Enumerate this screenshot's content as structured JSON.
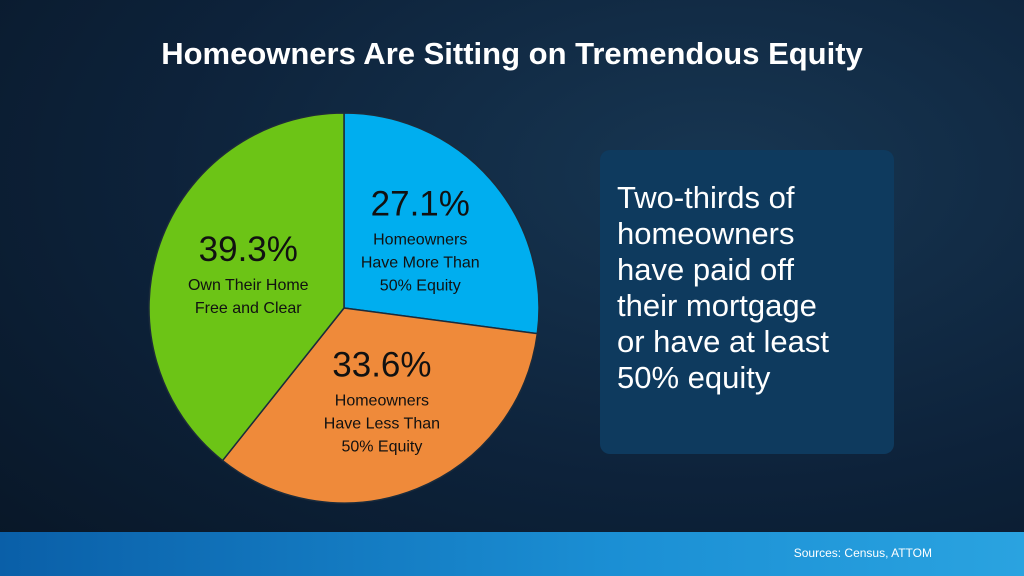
{
  "chart_data": {
    "type": "pie",
    "title": "Homeowners Are Sitting on Tremendous Equity",
    "categories": [
      "Homeowners Have More Than 50% Equity",
      "Homeowners Have Less Than 50% Equity",
      "Own Their Home Free and Clear"
    ],
    "values": [
      27.1,
      33.6,
      39.3
    ],
    "value_labels": [
      "27.1%",
      "33.6%",
      "39.3%"
    ],
    "colors": [
      "#00aeef",
      "#ef8a3a",
      "#6cc416"
    ]
  },
  "callout": {
    "lines": [
      "Two-thirds of",
      "homeowners",
      "have paid off",
      "their mortgage",
      "or have at least",
      "50% equity"
    ]
  },
  "footer": {
    "source": "Sources: Census, ATTOM"
  }
}
